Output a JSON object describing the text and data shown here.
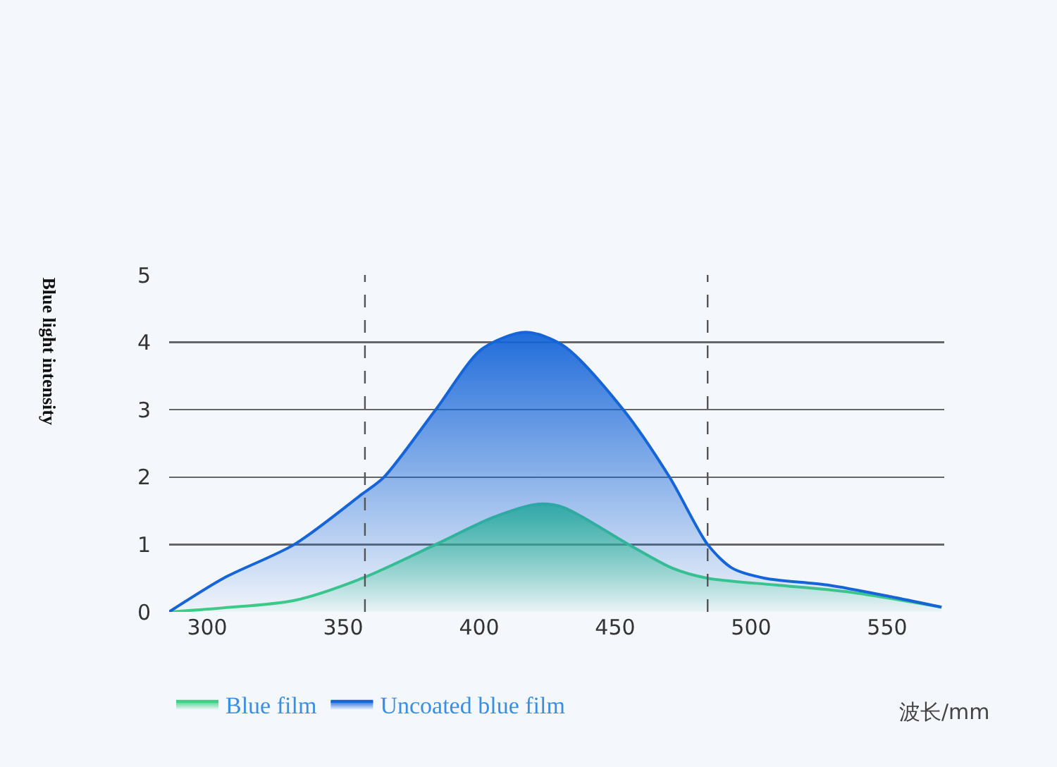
{
  "chart_data": {
    "type": "area",
    "xlabel": "波长/mm",
    "ylabel": "Blue light intensity",
    "xlim": [
      286,
      571
    ],
    "xticks": [
      300,
      350,
      400,
      450,
      500,
      550
    ],
    "ylim": [
      0,
      5
    ],
    "yticks": [
      0,
      1,
      2,
      3,
      4,
      5
    ],
    "grid": "y",
    "legend": "bottom left",
    "marker": "none",
    "line_style": "solid",
    "ref_lines": [
      {
        "axis": "x",
        "value": 358,
        "color": "#555555",
        "line_style": "dashed"
      },
      {
        "axis": "x",
        "value": 484,
        "color": "#555555",
        "line_style": "dashed"
      }
    ],
    "series": [
      {
        "name": "Blue film",
        "color": "#3ccf85",
        "x": [
          286,
          306,
          332,
          357,
          384,
          405,
          422,
          431,
          455,
          471,
          484,
          509,
          535,
          570
        ],
        "values": [
          0,
          0.06,
          0.17,
          0.5,
          1.0,
          1.4,
          1.6,
          1.55,
          1.0,
          0.65,
          0.5,
          0.4,
          0.3,
          0.07
        ]
      },
      {
        "name": "Uncoated blue film",
        "color": "#1565d8",
        "x": [
          286,
          306,
          332,
          357,
          365,
          384,
          401,
          417,
          431,
          453,
          470,
          484,
          493,
          505,
          528,
          552,
          570
        ],
        "values": [
          0,
          0.5,
          1.0,
          1.75,
          2.0,
          3.0,
          3.9,
          4.15,
          3.95,
          3.0,
          2.0,
          1.0,
          0.65,
          0.5,
          0.4,
          0.22,
          0.07
        ]
      }
    ]
  }
}
